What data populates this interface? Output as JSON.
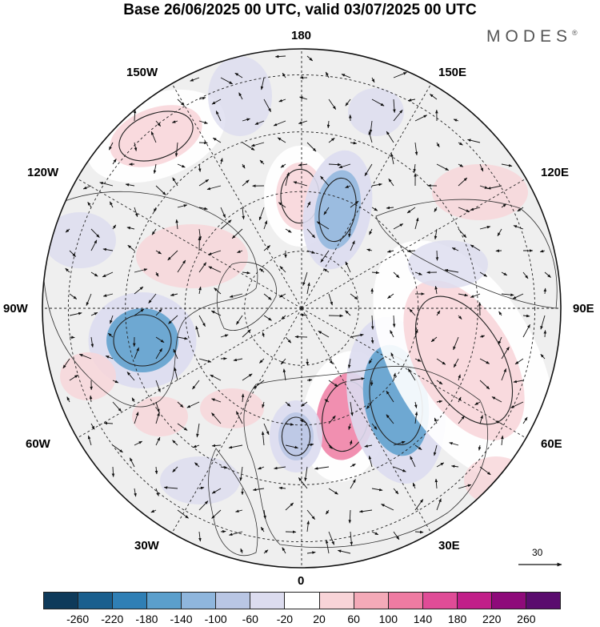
{
  "title": "Base 26/06/2025 00 UTC, valid 03/07/2025 00 UTC",
  "logo": {
    "text": "MODES",
    "mark": "®"
  },
  "longitude_labels": {
    "top": "180",
    "bottom": "0",
    "left": "90W",
    "right": "90E",
    "upper_left_1": "150W",
    "upper_left_2": "120W",
    "lower_left_1": "60W",
    "lower_left_2": "30W",
    "upper_right_1": "150E",
    "upper_right_2": "120E",
    "lower_right_1": "60E",
    "lower_right_2": "30E"
  },
  "reference_vector": {
    "label": "30"
  },
  "colorbar": {
    "colors": [
      "#0e3a5a",
      "#1a5f8e",
      "#2f7fb5",
      "#5b9fcc",
      "#8fb6dd",
      "#b9c6e4",
      "#dcdcef",
      "#ffffff",
      "#f8d4d8",
      "#f4aab8",
      "#ee7ba2",
      "#e04c97",
      "#c11f89",
      "#8e0a7a",
      "#5a0c6e"
    ],
    "ticks": [
      "-260",
      "-220",
      "-180",
      "-140",
      "-100",
      "-60",
      "-20",
      "20",
      "60",
      "100",
      "140",
      "180",
      "220",
      "260"
    ]
  },
  "anomaly_pattern": [
    {
      "sign": "positive",
      "level": "60",
      "region": "north of Siberia near pole"
    },
    {
      "sign": "negative",
      "level": "-100",
      "region": "Laptev / east Siberian sector"
    },
    {
      "sign": "positive",
      "level": "140",
      "region": "Scandinavia / Baltic"
    },
    {
      "sign": "negative",
      "level": "-140",
      "region": "western Russia"
    },
    {
      "sign": "positive",
      "level": "60",
      "region": "central Asia"
    },
    {
      "sign": "negative",
      "level": "-140",
      "region": "Hudson Bay"
    },
    {
      "sign": "positive",
      "level": "60",
      "region": "northern Pacific"
    },
    {
      "sign": "negative",
      "level": "-60",
      "region": "British Isles"
    }
  ]
}
